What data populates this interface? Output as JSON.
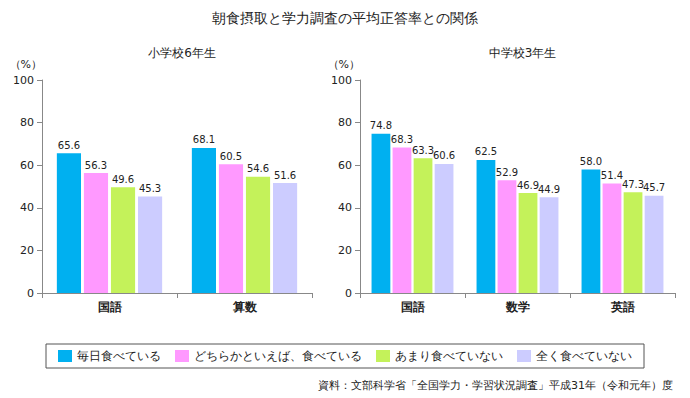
{
  "title": "朝食摂取と学力調査の平均正答率との関係",
  "source": "資料：文部科学省「全国学力・学習状況調査」平成31年（令和元年）度",
  "chart_data": [
    {
      "type": "bar",
      "title": "小学校6年生",
      "y_label": "（%）",
      "categories": [
        "国語",
        "算数"
      ],
      "series": [
        {
          "name": "毎日食べている",
          "color": "#00B0F0",
          "values": [
            65.6,
            68.1
          ]
        },
        {
          "name": "どちらかといえば、食べている",
          "color": "#FF99FF",
          "values": [
            56.3,
            60.5
          ]
        },
        {
          "name": "あまり食べていない",
          "color": "#C4F25A",
          "values": [
            49.6,
            54.6
          ]
        },
        {
          "name": "全く食べていない",
          "color": "#CCCCFF",
          "values": [
            45.3,
            51.6
          ]
        }
      ],
      "ylim": [
        0,
        100
      ],
      "yticks": [
        0,
        20,
        40,
        60,
        80,
        100
      ],
      "grid": false,
      "data_labels": true,
      "legend": "bottom"
    },
    {
      "type": "bar",
      "title": "中学校3年生",
      "y_label": "（%）",
      "categories": [
        "国語",
        "数学",
        "英語"
      ],
      "series": [
        {
          "name": "毎日食べている",
          "color": "#00B0F0",
          "values": [
            74.8,
            62.5,
            58.0
          ],
          "value_labels": [
            "74.8",
            "62.5",
            "58.0"
          ]
        },
        {
          "name": "どちらかといえば、食べている",
          "color": "#FF99FF",
          "values": [
            68.3,
            52.9,
            51.4
          ]
        },
        {
          "name": "あまり食べていない",
          "color": "#C4F25A",
          "values": [
            63.3,
            46.9,
            47.3
          ]
        },
        {
          "name": "全く食べていない",
          "color": "#CCCCFF",
          "values": [
            60.6,
            44.9,
            45.7
          ]
        }
      ],
      "ylim": [
        0,
        100
      ],
      "yticks": [
        0,
        20,
        40,
        60,
        80,
        100
      ],
      "grid": false,
      "data_labels": true,
      "legend": "bottom"
    }
  ]
}
